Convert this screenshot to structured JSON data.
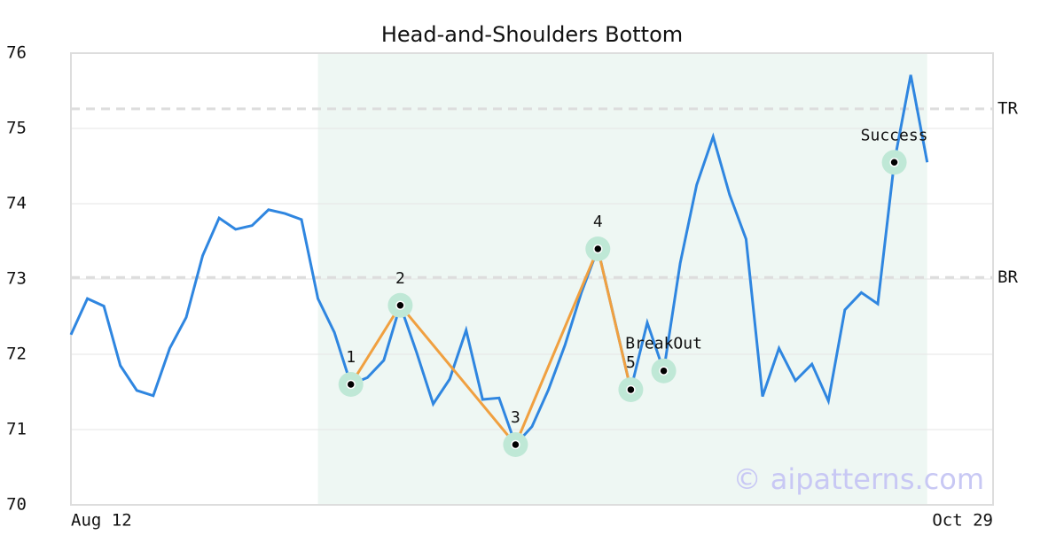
{
  "chart_data": {
    "type": "line",
    "title": "Head-and-Shoulders Bottom",
    "categories": [
      "Aug 12",
      null,
      null,
      null,
      null,
      null,
      null,
      null,
      null,
      null,
      null,
      null,
      null,
      null,
      null,
      null,
      null,
      null,
      null,
      null,
      null,
      null,
      null,
      null,
      null,
      null,
      null,
      null,
      null,
      null,
      null,
      null,
      null,
      null,
      null,
      null,
      null,
      null,
      null,
      null,
      null,
      null,
      null,
      null,
      null,
      null,
      null,
      null,
      null,
      null,
      null,
      null,
      null,
      null,
      null,
      null,
      "Oct 29"
    ],
    "series": [
      {
        "color": "#2f86e0",
        "values": [
          72.26,
          72.74,
          72.64,
          71.85,
          71.52,
          71.45,
          72.08,
          72.49,
          73.31,
          73.81,
          73.66,
          73.71,
          73.92,
          73.87,
          73.79,
          72.74,
          72.29,
          71.6,
          71.69,
          71.92,
          72.65,
          72.02,
          71.34,
          71.67,
          72.32,
          71.4,
          71.42,
          70.8,
          71.04,
          71.53,
          72.12,
          72.82,
          73.4,
          72.47,
          71.53,
          72.42,
          71.78,
          73.21,
          74.25,
          74.89,
          74.12,
          73.53,
          71.44,
          72.08,
          71.65,
          71.87,
          71.38,
          72.59,
          72.82,
          72.67,
          74.55,
          75.71,
          74.55,
          null,
          null,
          null,
          null
        ]
      }
    ],
    "pattern_color": "#f0a040",
    "markers": [
      {
        "label": "1",
        "index": 17,
        "value": 71.6
      },
      {
        "label": "2",
        "index": 20,
        "value": 72.65
      },
      {
        "label": "3",
        "index": 27,
        "value": 70.8
      },
      {
        "label": "4",
        "index": 32,
        "value": 73.4
      },
      {
        "label": "5",
        "index": 34,
        "value": 71.53
      },
      {
        "label": "BreakOut",
        "index": 36,
        "value": 71.78
      },
      {
        "label": "Success",
        "index": 50,
        "value": 74.55
      }
    ],
    "pattern_marker_count": 5,
    "levels": [
      {
        "label": "TR",
        "value": 75.26
      },
      {
        "label": "BR",
        "value": 73.02
      }
    ],
    "shaded_range": [
      15,
      52
    ],
    "ylim": [
      70,
      76
    ],
    "yticks": [
      70,
      71,
      72,
      73,
      74,
      75,
      76
    ],
    "grid": true,
    "watermark": "© aipatterns.com"
  }
}
